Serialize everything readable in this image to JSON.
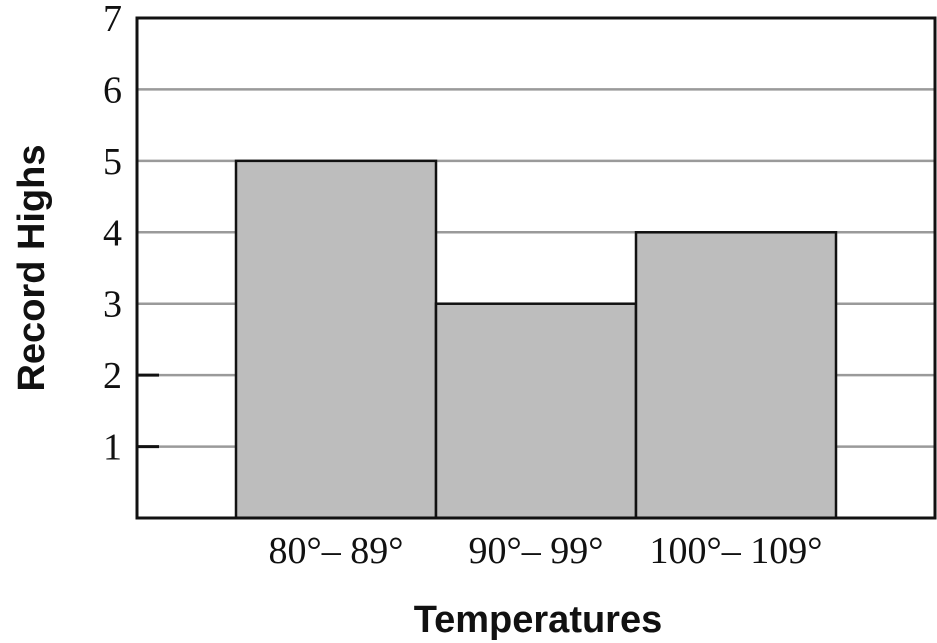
{
  "chart_data": {
    "type": "bar",
    "categories": [
      "80°– 89°",
      "90°– 99°",
      "100°– 109°"
    ],
    "values": [
      5,
      3,
      4
    ],
    "title": "",
    "xlabel": "Temperatures",
    "ylabel": "Record Highs",
    "ylim": [
      0,
      7
    ],
    "yticks": [
      1,
      2,
      3,
      4,
      5,
      6,
      7
    ],
    "grid": true,
    "legend": "none",
    "bar_color": "#bdbdbd",
    "bar_edge_color": "#111111",
    "grid_color": "#9a9a9a"
  }
}
